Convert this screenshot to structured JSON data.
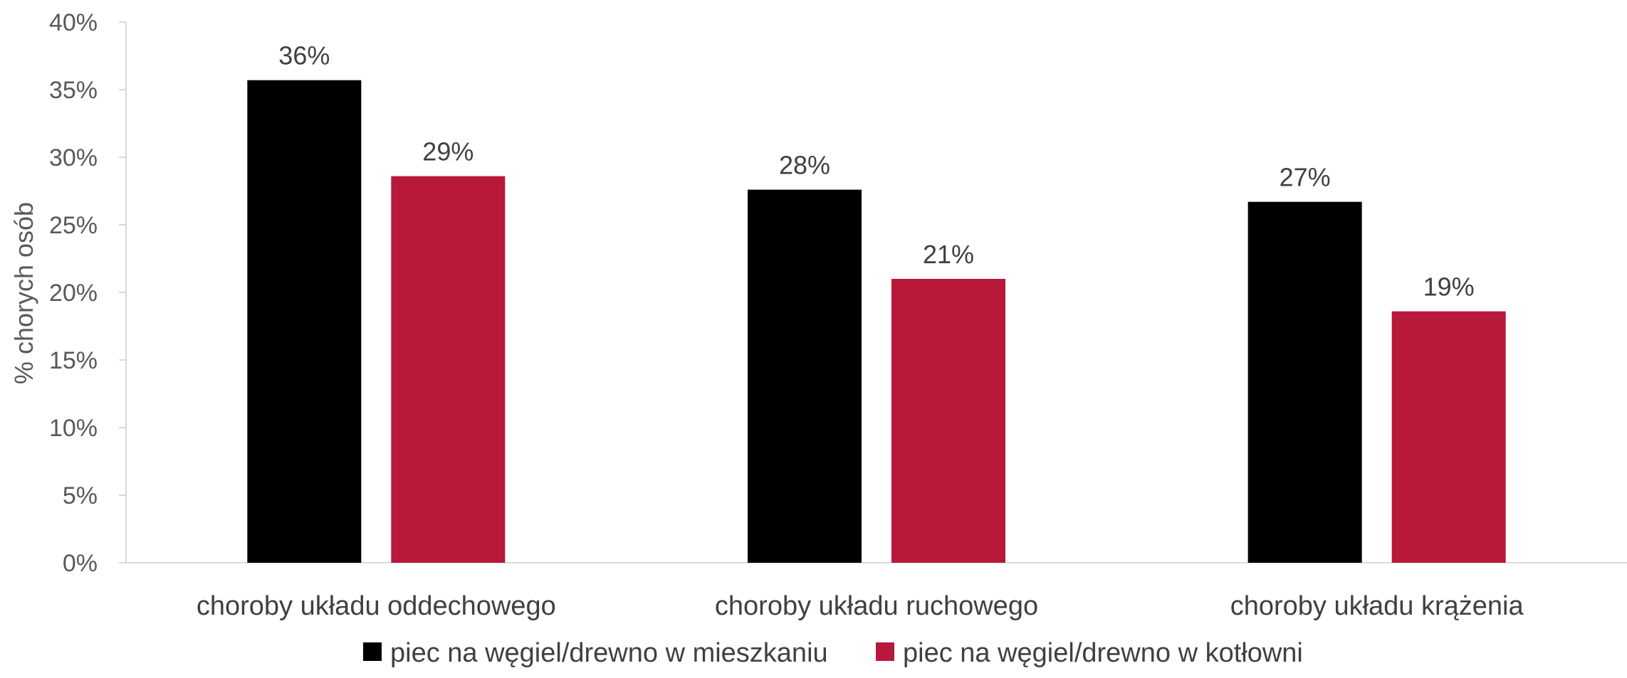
{
  "chart_data": {
    "type": "bar",
    "title": "",
    "xlabel": "",
    "ylabel": "% chorych osób",
    "ylim": [
      0,
      40
    ],
    "yticks": [
      "0%",
      "5%",
      "10%",
      "15%",
      "20%",
      "25%",
      "30%",
      "35%",
      "40%"
    ],
    "categories": [
      "choroby układu oddechowego",
      "choroby układu ruchowego",
      "choroby układu krążenia"
    ],
    "series": [
      {
        "name": "piec na węgiel/drewno w mieszkaniu",
        "color": "#000000",
        "values": [
          35.7,
          27.6,
          26.7
        ],
        "labels": [
          "36%",
          "28%",
          "27%"
        ]
      },
      {
        "name": "piec na węgiel/drewno w kotłowni",
        "color": "#b8183a",
        "values": [
          28.6,
          21.0,
          18.6
        ],
        "labels": [
          "29%",
          "21%",
          "19%"
        ]
      }
    ],
    "grid": false,
    "legend": "bottom"
  }
}
